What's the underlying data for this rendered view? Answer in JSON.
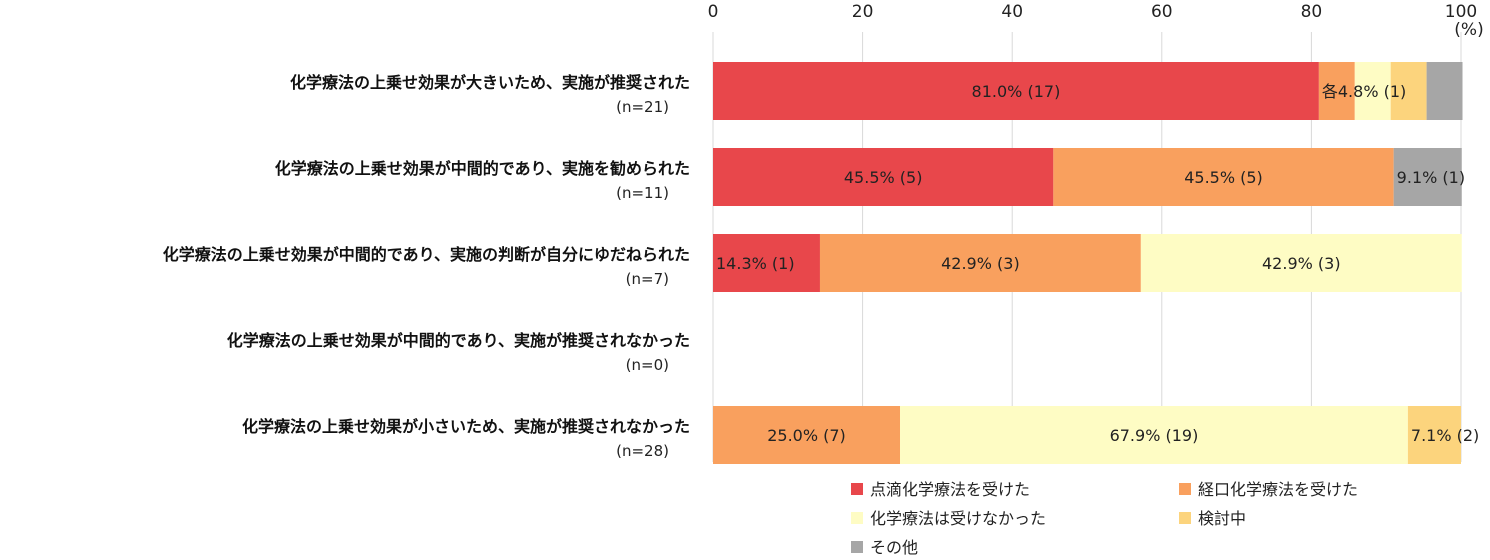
{
  "chart_data": {
    "type": "bar",
    "orientation": "horizontal",
    "stacked": true,
    "xlim": [
      0,
      100
    ],
    "xticks": [
      "0",
      "20",
      "40",
      "60",
      "80",
      "100"
    ],
    "unit_label": "(%)",
    "grid": true,
    "legend_position": "bottom",
    "categories": [
      {
        "label": "化学療法の上乗せ効果が大きいため、実施が推奨された",
        "n": "(n=21)"
      },
      {
        "label": "化学療法の上乗せ効果が中間的であり、実施を勧められた",
        "n": "(n=11)"
      },
      {
        "label": "化学療法の上乗せ効果が中間的であり、実施の判断が自分にゆだねられた",
        "n": "(n=7)"
      },
      {
        "label": "化学療法の上乗せ効果が中間的であり、実施が推奨されなかった",
        "n": "(n=0)"
      },
      {
        "label": "化学療法の上乗せ効果が小さいため、実施が推奨されなかった",
        "n": "(n=28)"
      }
    ],
    "series": [
      {
        "name": "点滴化学療法を受けた",
        "color": "#e8474b",
        "values": [
          81.0,
          45.5,
          14.3,
          0,
          0
        ]
      },
      {
        "name": "経口化学療法を受けた",
        "color": "#f9a05e",
        "values": [
          4.8,
          45.5,
          42.9,
          0,
          25.0
        ]
      },
      {
        "name": "化学療法は受けなかった",
        "color": "#fefcc4",
        "values": [
          4.8,
          0,
          42.9,
          0,
          67.9
        ]
      },
      {
        "name": "検討中",
        "color": "#fcd47d",
        "values": [
          4.8,
          0,
          0,
          0,
          7.1
        ]
      },
      {
        "name": "その他",
        "color": "#a6a6a6",
        "values": [
          4.8,
          9.1,
          0,
          0,
          0
        ]
      }
    ],
    "data_labels": [
      [
        {
          "text": "81.0% (17)",
          "segment": 0,
          "place": "center"
        },
        {
          "text": "各4.8% (1)",
          "segment": 1,
          "place": "start"
        }
      ],
      [
        {
          "text": "45.5% (5)",
          "segment": 0,
          "place": "center"
        },
        {
          "text": "45.5% (5)",
          "segment": 1,
          "place": "center"
        },
        {
          "text": "9.1% (1)",
          "segment": 4,
          "place": "start"
        }
      ],
      [
        {
          "text": "14.3% (1)",
          "segment": 0,
          "place": "start"
        },
        {
          "text": "42.9% (3)",
          "segment": 1,
          "place": "center"
        },
        {
          "text": "42.9% (3)",
          "segment": 2,
          "place": "center"
        }
      ],
      [],
      [
        {
          "text": "25.0% (7)",
          "segment": 1,
          "place": "center"
        },
        {
          "text": "67.9% (19)",
          "segment": 2,
          "place": "center"
        },
        {
          "text": "7.1% (2)",
          "segment": 3,
          "place": "start"
        }
      ]
    ]
  }
}
